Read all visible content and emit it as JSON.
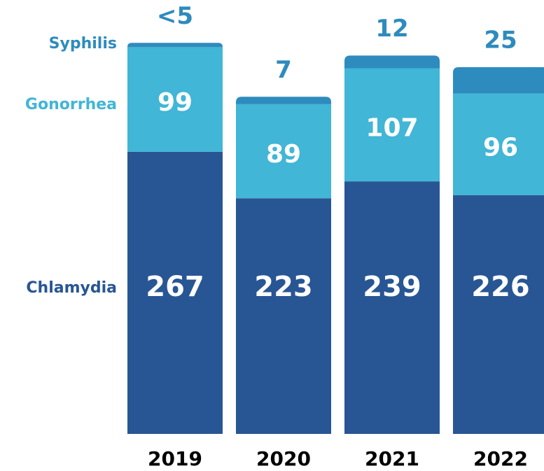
{
  "chart_data": {
    "type": "bar",
    "stacked": true,
    "categories": [
      "2019",
      "2020",
      "2021",
      "2022"
    ],
    "series": [
      {
        "name": "Chlamydia",
        "color": "#285694",
        "values": [
          267,
          223,
          239,
          226
        ]
      },
      {
        "name": "Gonorrhea",
        "color": "#41b6d6",
        "values": [
          99,
          89,
          107,
          96
        ]
      },
      {
        "name": "Syphilis",
        "color": "#2e8bbd",
        "values": [
          4,
          7,
          12,
          25
        ],
        "value_labels": [
          "<5",
          "7",
          "12",
          "25"
        ]
      }
    ]
  }
}
